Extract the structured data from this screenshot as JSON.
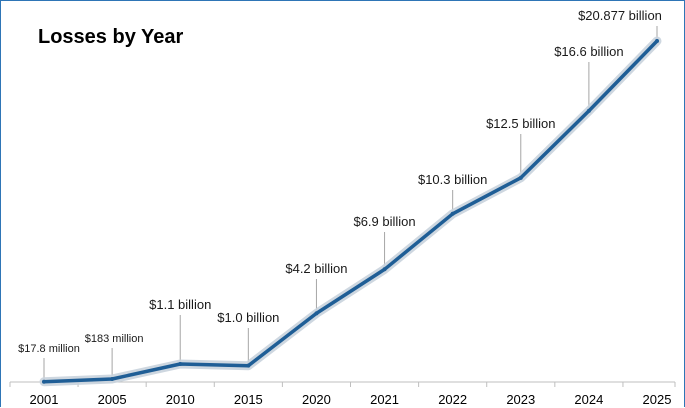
{
  "chart_data": {
    "type": "line",
    "title": "Losses by Year",
    "xlabel": "",
    "ylabel": "",
    "categories": [
      "2001",
      "2005",
      "2010",
      "2015",
      "2020",
      "2021",
      "2022",
      "2023",
      "2024",
      "2025"
    ],
    "series": [
      {
        "values": [
          0.0178,
          0.183,
          1.1,
          1.0,
          4.2,
          6.9,
          10.3,
          12.5,
          16.6,
          20.877
        ],
        "data_labels": [
          "$17.8 million",
          "$183 million",
          "$1.1 billion",
          "$1.0 billion",
          "$4.2 billion",
          "$6.9 billion",
          "$10.3 billion",
          "$12.5 billion",
          "$16.6 billion",
          "$20.877 billion"
        ]
      }
    ],
    "units": "billion USD",
    "ylim": [
      0,
      22
    ],
    "grid": false,
    "legend": "none",
    "colors": {
      "line": "#1f5e96",
      "glow": "#c9d3dd",
      "leader": "#a6a6a6",
      "axis": "#bfbfbf",
      "border": "#2e75b6"
    }
  }
}
